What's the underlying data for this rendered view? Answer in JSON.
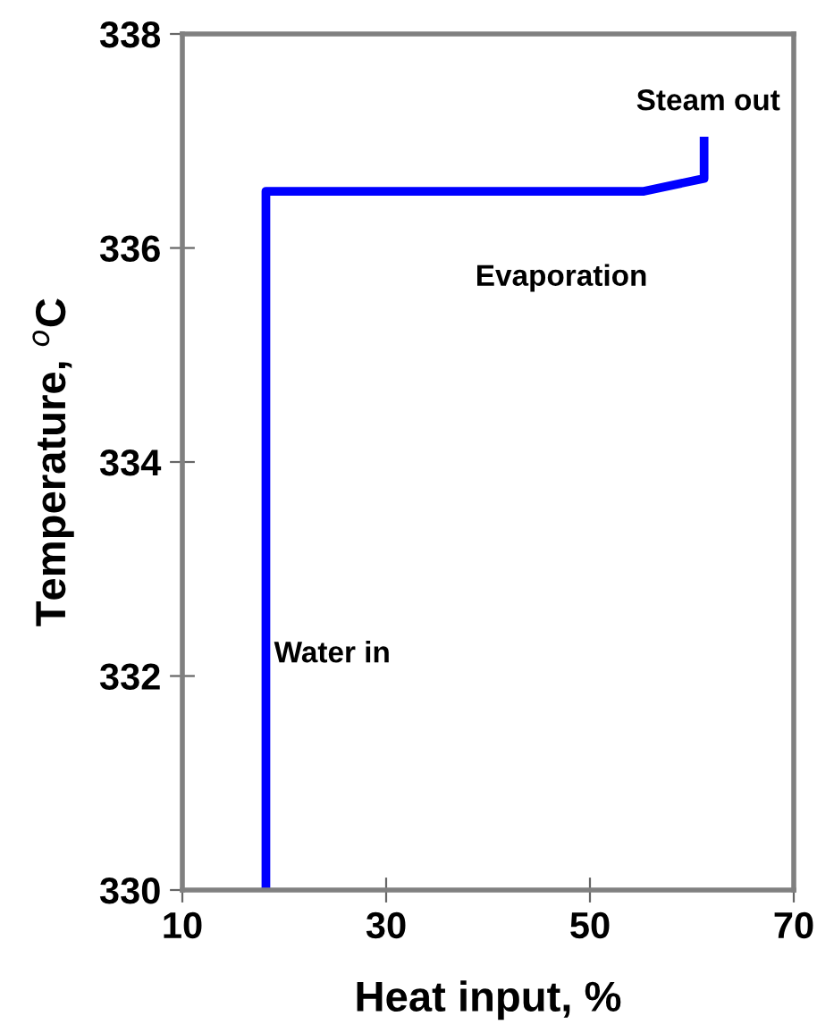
{
  "chart_data": {
    "type": "line",
    "xlabel": "Heat input, %",
    "ylabel": "Temperature, $^{o}$C",
    "series": [
      {
        "color": "#0000ff",
        "x": [
          18.2,
          18.2,
          55.3,
          61.2,
          61.2
        ],
        "values": [
          330,
          336.53,
          336.53,
          336.65,
          337.0
        ]
      }
    ],
    "xlim": [
      10,
      70
    ],
    "xticks": [
      10,
      30,
      50,
      70
    ],
    "ylim": [
      330,
      338
    ],
    "yticks": [
      330,
      332,
      334,
      336,
      338
    ],
    "grid": false,
    "legend": false,
    "marker": "none",
    "line_style": "solid",
    "annotations": [
      "Steam out",
      "Evaporation",
      {
        "text": "Water in",
        "x": 19,
        "y": 332.2
      }
    ]
  }
}
